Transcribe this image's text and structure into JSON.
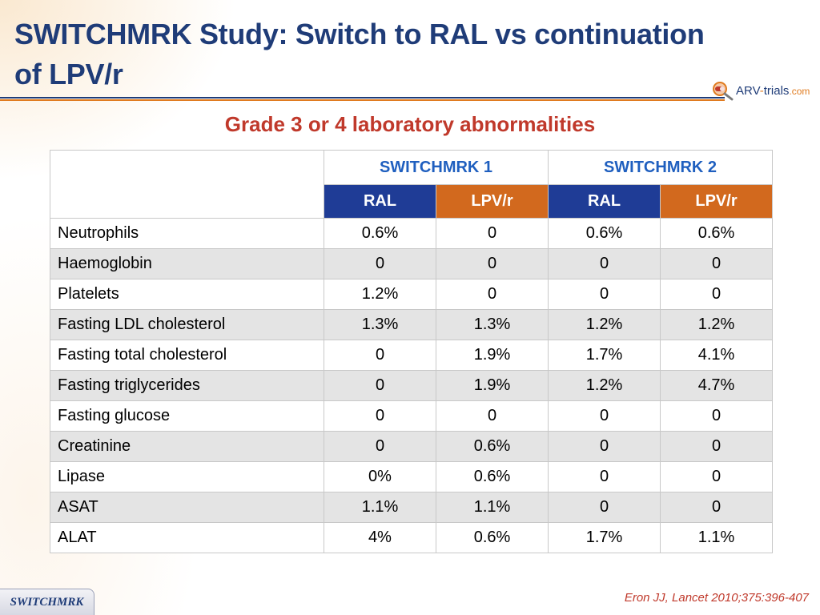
{
  "header": {
    "title": "SWITCHMRK Study: Switch to RAL vs continuation of LPV/r",
    "subtitle": "Grade 3 or 4 laboratory abnormalities"
  },
  "logo": {
    "name_main": "ARV",
    "name_dash": "-",
    "name_trials": "trials",
    "name_tld": ".com",
    "icon": "magnifier-capsule-icon"
  },
  "table": {
    "groups": [
      "SWITCHMRK 1",
      "SWITCHMRK 2"
    ],
    "subheaders": [
      "RAL",
      "LPV/r",
      "RAL",
      "LPV/r"
    ],
    "rows": [
      {
        "label": "Neutrophils",
        "values": [
          "0.6%",
          "0",
          "0.6%",
          "0.6%"
        ]
      },
      {
        "label": "Haemoglobin",
        "values": [
          "0",
          "0",
          "0",
          "0"
        ]
      },
      {
        "label": "Platelets",
        "values": [
          "1.2%",
          "0",
          "0",
          "0"
        ]
      },
      {
        "label": "Fasting LDL cholesterol",
        "values": [
          "1.3%",
          "1.3%",
          "1.2%",
          "1.2%"
        ]
      },
      {
        "label": "Fasting total cholesterol",
        "values": [
          "0",
          "1.9%",
          "1.7%",
          "4.1%"
        ]
      },
      {
        "label": "Fasting triglycerides",
        "values": [
          "0",
          "1.9%",
          "1.2%",
          "4.7%"
        ]
      },
      {
        "label": "Fasting glucose",
        "values": [
          "0",
          "0",
          "0",
          "0"
        ]
      },
      {
        "label": "Creatinine",
        "values": [
          "0",
          "0.6%",
          "0",
          "0"
        ]
      },
      {
        "label": "Lipase",
        "values": [
          "0%",
          "0.6%",
          "0",
          "0"
        ]
      },
      {
        "label": "ASAT",
        "values": [
          "1.1%",
          "1.1%",
          "0",
          "0"
        ]
      },
      {
        "label": "ALAT",
        "values": [
          "4%",
          "0.6%",
          "1.7%",
          "1.1%"
        ]
      }
    ]
  },
  "footer": {
    "tab_label": "SWITCHMRK",
    "citation": "Eron JJ, Lancet 2010;375:396-407"
  },
  "colors": {
    "title_blue": "#1f3c78",
    "accent_orange": "#e07b1f",
    "subtitle_red": "#c0392b",
    "ral_header": "#1f3c96",
    "lpv_header": "#d2691e",
    "group_header_text": "#1f5fbf",
    "stripe_gray": "#e4e4e4"
  }
}
